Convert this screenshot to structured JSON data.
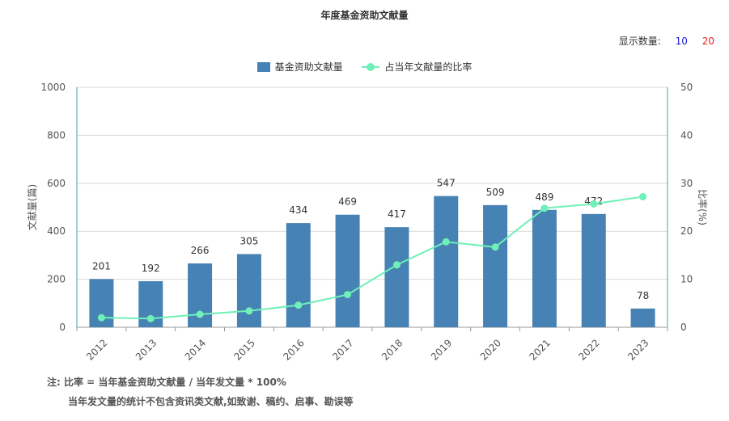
{
  "title": "年度基金资助文献量",
  "controls": {
    "show_count_label": "显示数量:",
    "options": [
      "10",
      "20"
    ]
  },
  "legend": {
    "bar_label": "基金资助文献量",
    "line_label": "占当年文献量的比率"
  },
  "notes": {
    "line1": "注:  比率 = 当年基金资助文献量 / 当年发文量 * 100%",
    "line2": "当年发文量的统计不包含资讯类文献,如致谢、稿约、启事、勘误等"
  },
  "colors": {
    "bar": "#4682b4",
    "line": "#6ef0b8",
    "grid": "#d9d9d9",
    "axis": "#4aa3a8"
  },
  "chart_data": {
    "type": "bar",
    "title": "年度基金资助文献量",
    "categories": [
      "2012",
      "2013",
      "2014",
      "2015",
      "2016",
      "2017",
      "2018",
      "2019",
      "2020",
      "2021",
      "2022",
      "2023"
    ],
    "series": [
      {
        "name": "基金资助文献量",
        "type": "bar",
        "axis": "left",
        "values": [
          201,
          192,
          266,
          305,
          434,
          469,
          417,
          547,
          509,
          489,
          472,
          78
        ]
      },
      {
        "name": "占当年文献量的比率",
        "type": "line",
        "axis": "right",
        "values": [
          2.0,
          1.8,
          2.7,
          3.4,
          4.6,
          6.8,
          13.0,
          17.8,
          16.7,
          24.8,
          25.7,
          27.2
        ]
      }
    ],
    "ylabel": "文献量(篇)",
    "ylim": [
      0,
      1000
    ],
    "yticks": [
      "0",
      "200",
      "400",
      "600",
      "800",
      "1000"
    ],
    "y2label": "比率(%)",
    "y2lim": [
      0,
      50
    ],
    "y2ticks": [
      "0",
      "10",
      "20",
      "30",
      "40",
      "50"
    ],
    "grid": true,
    "legend_position": "top-center"
  }
}
